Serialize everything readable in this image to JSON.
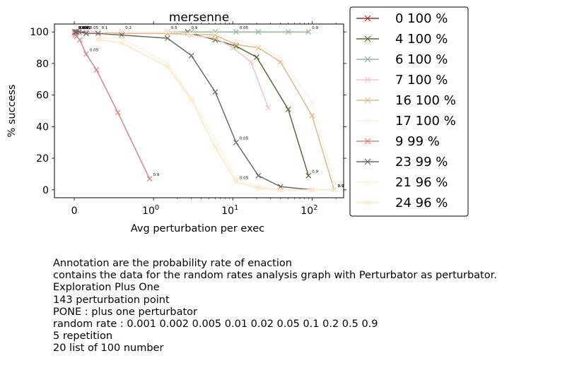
{
  "chart_data": {
    "type": "line",
    "title": "mersenne",
    "xlabel": "Avg perturbation per exec",
    "ylabel": "% success",
    "xscale": "symlog",
    "ylim": [
      -5,
      105
    ],
    "xlim": [
      -0.25,
      250
    ],
    "xticks": [
      {
        "v": 0,
        "label": "0"
      },
      {
        "v": 1,
        "label": "10",
        "exp": "0"
      },
      {
        "v": 10,
        "label": "10",
        "exp": "1"
      },
      {
        "v": 100,
        "label": "10",
        "exp": "2"
      }
    ],
    "yticks": [
      0,
      20,
      40,
      60,
      80,
      100
    ],
    "grid": false,
    "legend_position": "outside-right",
    "series": [
      {
        "name": "0 100 %",
        "color": "#a52a2a",
        "x": [
          0.003,
          0.006,
          0.015,
          0.03,
          0.06,
          0.15,
          0.3,
          0.6,
          1.5,
          2.7
        ],
        "y": [
          100,
          100,
          100,
          100,
          100,
          100,
          100,
          100,
          100,
          100
        ],
        "annotations": [
          "0.001",
          "0.002",
          "0.005",
          "0.01",
          "0.02",
          "0.05",
          "0.1",
          "0.2",
          "0.5",
          "0.9"
        ]
      },
      {
        "name": "4 100 %",
        "color": "#556b2f",
        "x": [
          0.15,
          0.3,
          0.6,
          1.5,
          3,
          6,
          11,
          20,
          50,
          90
        ],
        "y": [
          100,
          100,
          100,
          100,
          99,
          95,
          91,
          84,
          51,
          9
        ],
        "annotations": [
          "",
          "",
          "",
          "",
          "",
          "",
          "",
          "",
          "",
          "0.9"
        ]
      },
      {
        "name": "6 100 %",
        "color": "#8fbc8f",
        "x": [
          0.3,
          0.6,
          1.5,
          3,
          6,
          11,
          21,
          50,
          90
        ],
        "y": [
          100,
          100,
          100,
          100,
          100,
          100,
          100,
          100,
          100
        ],
        "annotations": [
          "",
          "",
          "",
          "",
          "",
          "0.05",
          "",
          "",
          "0.9"
        ]
      },
      {
        "name": "7 100 %",
        "color": "#f4c2c2",
        "x": [
          0.15,
          0.3,
          0.6,
          1.5,
          3,
          6,
          10,
          17,
          28
        ],
        "y": [
          100,
          100,
          99,
          99,
          98,
          96,
          90,
          81,
          52
        ],
        "annotations": []
      },
      {
        "name": "16 100 %",
        "color": "#deb887",
        "x": [
          0.3,
          0.6,
          1.5,
          3,
          6,
          11,
          21,
          40,
          100,
          190
        ],
        "y": [
          100,
          99,
          99,
          99,
          98,
          92,
          90,
          81,
          47,
          0
        ],
        "annotations": [
          "",
          "",
          "",
          "",
          "",
          "",
          "",
          "",
          "",
          "0.9"
        ]
      },
      {
        "name": "17 100 %",
        "color": "#fff0e0",
        "x": [
          0.3,
          0.6,
          1.5,
          3,
          6,
          11,
          21,
          40,
          100,
          190
        ],
        "y": [
          100,
          100,
          100,
          99,
          99,
          95,
          91,
          84,
          55,
          5
        ],
        "annotations": []
      },
      {
        "name": "9 99 %",
        "color": "#e08080",
        "x": [
          0.003,
          0.006,
          0.015,
          0.03,
          0.07,
          0.15,
          0.28,
          0.55,
          0.95
        ],
        "y": [
          100,
          99,
          98,
          97,
          95,
          86,
          76,
          49,
          7
        ],
        "annotations": [
          "",
          "",
          "",
          "",
          "",
          "0.05",
          "",
          "",
          "0.9"
        ]
      },
      {
        "name": "23 99 %",
        "color": "#696969",
        "x": [
          0.015,
          0.03,
          0.06,
          0.15,
          0.3,
          0.6,
          1.5,
          3,
          6,
          11,
          21,
          40,
          100,
          190
        ],
        "y": [
          100,
          100,
          100,
          99,
          99,
          98,
          96,
          85,
          62,
          30,
          9,
          2,
          0,
          0
        ],
        "annotations": [
          "",
          "",
          "",
          "",
          "",
          "",
          "",
          "",
          "",
          "0.05",
          "",
          "",
          "",
          "0.9"
        ]
      },
      {
        "name": "21 96 %",
        "color": "#fff0d8",
        "x": [
          0.3,
          0.6,
          1.5,
          3,
          6,
          11,
          21,
          40,
          100,
          190
        ],
        "y": [
          96,
          96,
          80,
          58,
          32,
          7,
          2,
          0,
          0,
          0
        ],
        "annotations": []
      },
      {
        "name": "24 96 %",
        "color": "#ffe4c4",
        "x": [
          0.3,
          0.6,
          1.5,
          3,
          6,
          11,
          21,
          40,
          100,
          190
        ],
        "y": [
          95,
          93,
          78,
          57,
          27,
          5,
          1,
          0,
          0,
          0
        ],
        "annotations": [
          "",
          "",
          "",
          "",
          "",
          "0.05",
          "",
          "",
          "",
          "0.9"
        ]
      }
    ]
  },
  "caption": [
    "Annotation are the probability rate of enaction",
    "contains the data for the random rates analysis graph with Perturbator as perturbator.",
    "Exploration Plus One",
    "143 perturbation point",
    "PONE : plus one perturbator",
    "random rate : 0.001 0.002 0.005 0.01 0.02 0.05 0.1 0.2 0.5 0.9",
    "5 repetition",
    "20 list of 100 number"
  ]
}
